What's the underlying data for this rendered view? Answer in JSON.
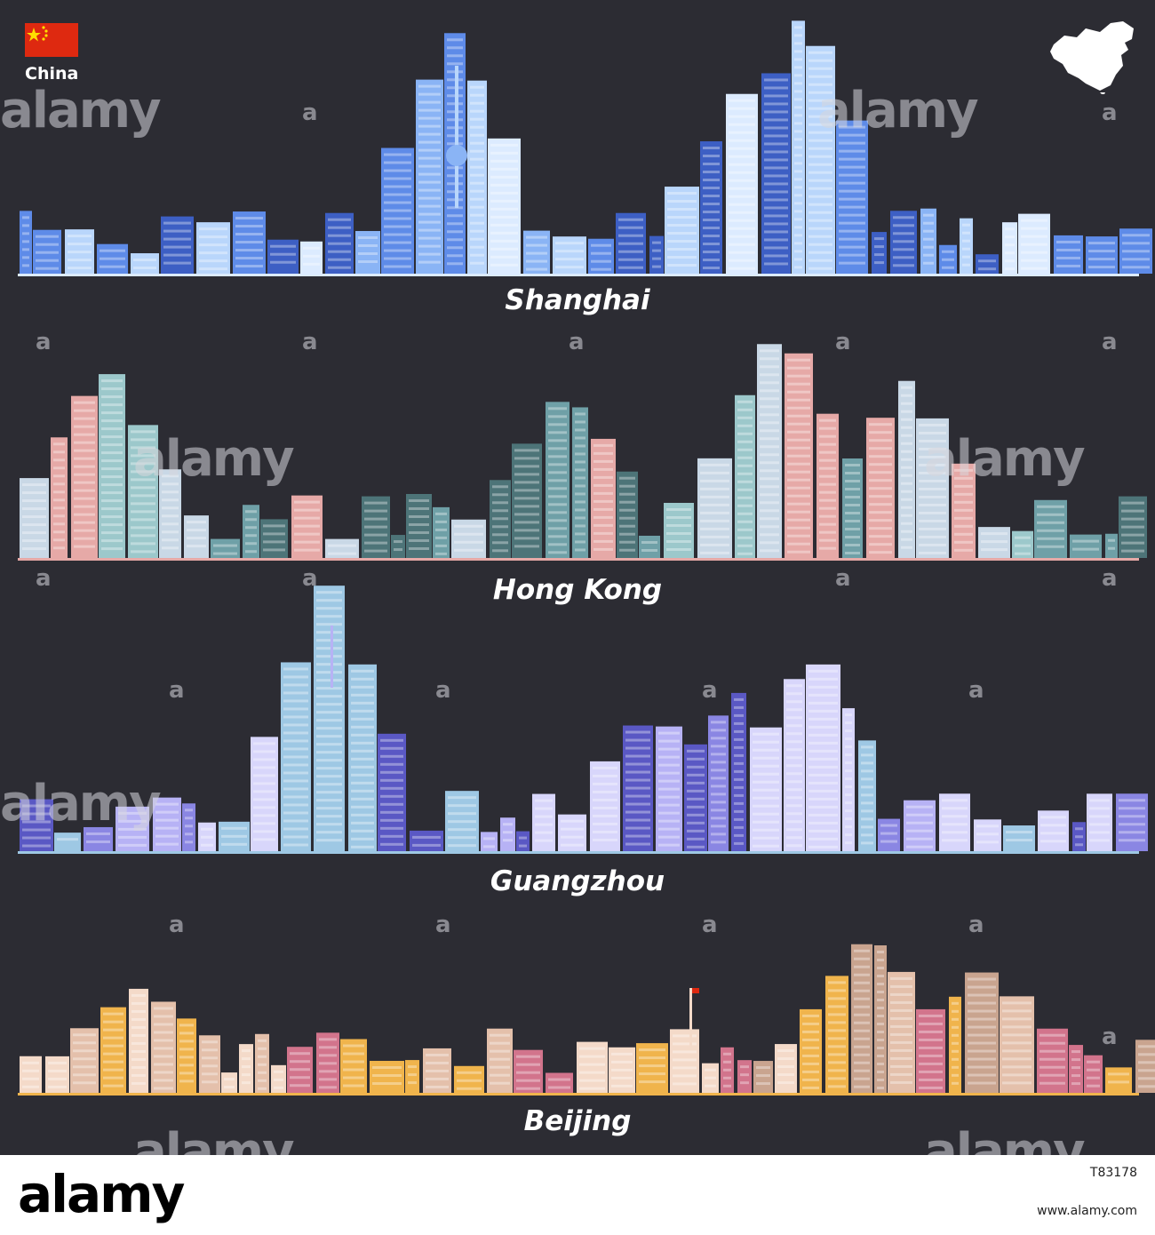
{
  "country": {
    "name": "China",
    "flag_icon": "china-flag-icon",
    "map_icon": "china-map-icon"
  },
  "skylines": [
    {
      "name": "Shanghai",
      "palette": [
        "#3d5fc4",
        "#5e8be8",
        "#8ab4f5",
        "#b9d6fb",
        "#dcebff"
      ]
    },
    {
      "name": "Hong Kong",
      "palette": [
        "#4d7478",
        "#6fa0a7",
        "#9cc8cb",
        "#c9d8e6",
        "#e6a9a7"
      ]
    },
    {
      "name": "Guangzhou",
      "palette": [
        "#5a58c4",
        "#8a86e3",
        "#b7b2f5",
        "#d8d6fb",
        "#9ec8e4"
      ]
    },
    {
      "name": "Beijing",
      "palette": [
        "#c9a48f",
        "#e4c0ab",
        "#f4dac9",
        "#d2748c",
        "#f0b44c"
      ]
    }
  ],
  "watermark": {
    "text": "alamy",
    "dot": "a"
  },
  "footer": {
    "brand": "alamy",
    "image_id": "T83178",
    "site": "www.alamy.com"
  }
}
